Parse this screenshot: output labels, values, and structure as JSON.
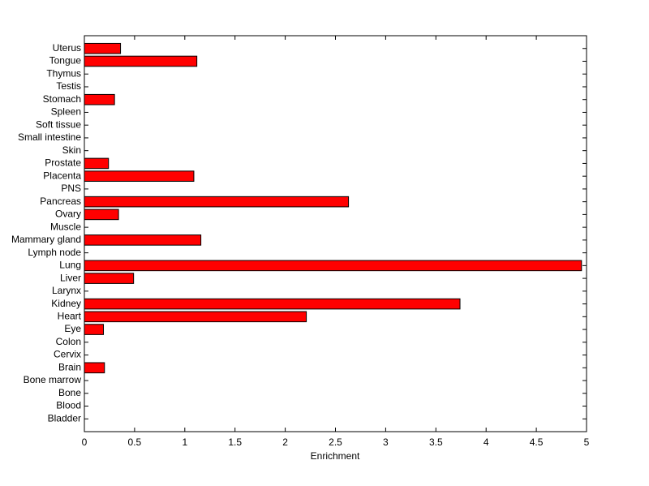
{
  "chart_data": {
    "type": "barh",
    "xlabel": "Enrichment",
    "categories": [
      "Bladder",
      "Blood",
      "Bone",
      "Bone marrow",
      "Brain",
      "Cervix",
      "Colon",
      "Eye",
      "Heart",
      "Kidney",
      "Larynx",
      "Liver",
      "Lung",
      "Lymph node",
      "Mammary gland",
      "Muscle",
      "Ovary",
      "Pancreas",
      "PNS",
      "Placenta",
      "Prostate",
      "Skin",
      "Small intestine",
      "Soft tissue",
      "Spleen",
      "Stomach",
      "Testis",
      "Thymus",
      "Tongue",
      "Uterus"
    ],
    "values": [
      0,
      0,
      0,
      0,
      0.2,
      0,
      0,
      0.19,
      2.21,
      3.74,
      0,
      0.49,
      4.95,
      0,
      1.16,
      0,
      0.34,
      2.63,
      0,
      1.09,
      0.24,
      0,
      0,
      0,
      0,
      0.3,
      0,
      0,
      1.12,
      0.36
    ],
    "color": "#ff0000",
    "xlim": [
      0,
      5
    ],
    "xticks": [
      0,
      0.5,
      1,
      1.5,
      2,
      2.5,
      3,
      3.5,
      4,
      4.5,
      5
    ]
  }
}
